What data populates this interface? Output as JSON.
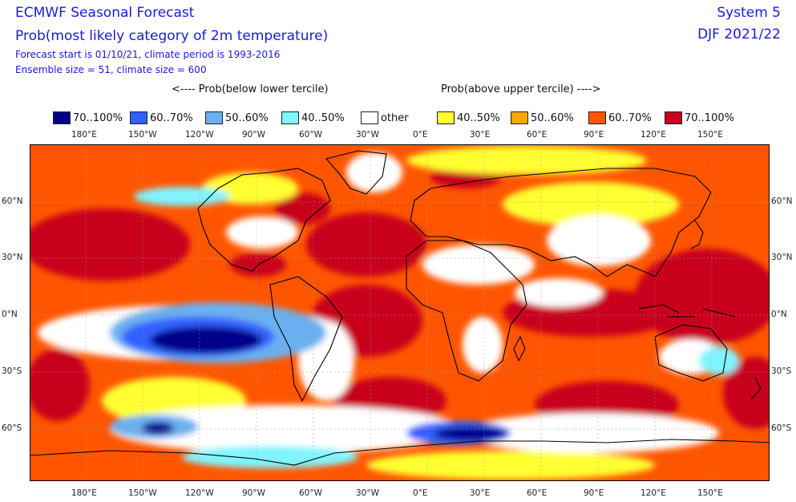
{
  "header": {
    "title": "ECMWF Seasonal Forecast",
    "subtitle": "Prob(most likely category of 2m temperature)",
    "forecast_info": "Forecast start is 01/10/21, climate period is 1993-2016",
    "ensemble_info": "Ensemble size = 51, climate size = 600",
    "system": "System 5",
    "season": "DJF 2021/22"
  },
  "legend": {
    "below_heading": "<---- Prob(below lower tercile)",
    "above_heading": "Prob(above upper tercile) ---->",
    "items": [
      {
        "label": "70..100%",
        "color": "#00008b"
      },
      {
        "label": "60..70%",
        "color": "#3060ff"
      },
      {
        "label": "50..60%",
        "color": "#6ab0f0"
      },
      {
        "label": "40..50%",
        "color": "#80f4ff"
      },
      {
        "label": "other",
        "color": "#ffffff"
      },
      {
        "label": "40..50%",
        "color": "#ffff33"
      },
      {
        "label": "50..60%",
        "color": "#ffa500"
      },
      {
        "label": "60..70%",
        "color": "#ff5500"
      },
      {
        "label": "70..100%",
        "color": "#c8001e"
      }
    ]
  },
  "axes": {
    "longitude_labels": [
      "180°E",
      "150°W",
      "120°W",
      "90°W",
      "60°W",
      "30°W",
      "0°E",
      "30°E",
      "60°E",
      "90°E",
      "120°E",
      "150°E"
    ],
    "latitude_labels": [
      "60°N",
      "30°N",
      "0°N",
      "30°S",
      "60°S"
    ]
  },
  "map": {
    "region": "global",
    "projection": "equirectangular",
    "ocean_default": "#ff5500",
    "coastline_color": "#000000"
  }
}
